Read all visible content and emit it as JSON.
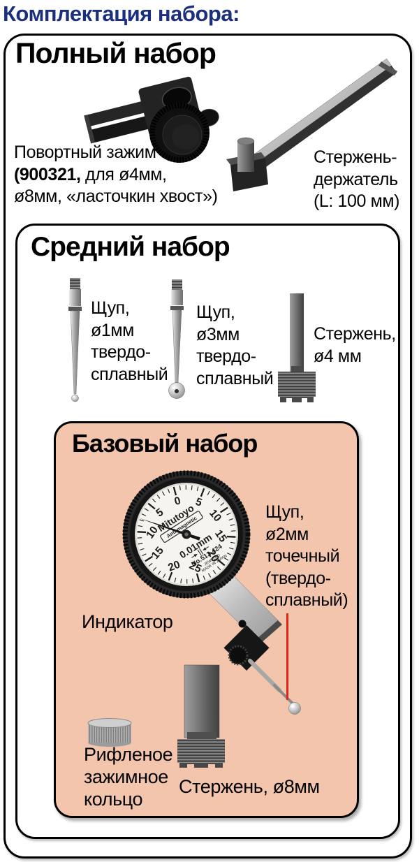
{
  "title": "Комплектация набора:",
  "full_set": {
    "heading": "Полный набор",
    "clamp_label": {
      "line1": "Повортный зажим",
      "line2_bold": "(900321,",
      "line2_rest": " для ø4мм,",
      "line3": "ø8мм, «ласточкин хвост»)"
    },
    "holder_label": {
      "line1": "Стержень-",
      "line2": "держатель",
      "line3": "(L: 100 мм)"
    }
  },
  "medium_set": {
    "heading": "Средний набор",
    "stylus1_label": {
      "line1": "Щуп,",
      "line2": "ø1мм",
      "line3": "твердо-",
      "line4": "сплавный"
    },
    "stylus3_label": {
      "line1": "Щуп,",
      "line2": "ø3мм",
      "line3": "твердо-",
      "line4": "сплавный"
    },
    "stem4_label": {
      "line1": "Стержень,",
      "line2": "ø4 мм"
    }
  },
  "basic_set": {
    "heading": "Базовый набор",
    "indicator_label": "Индикатор",
    "stylus2_label": {
      "line1": "Щуп,",
      "line2": "ø2мм",
      "line3": "точечный",
      "line4": "(твердо-",
      "line5": "сплавный)"
    },
    "ring_label": {
      "line1": "Рифленое",
      "line2": "зажимное",
      "line3": "кольцо"
    },
    "stem8_label": "Стержень, ø8мм",
    "dial": {
      "brand": "Mitutoyo",
      "antimagnetic": "Anti-magnetic",
      "graduation": "0.01mm",
      "model": "No.513-424",
      "submark1": "JEWELED",
      "submark2": "MADE IN JAPAN",
      "numbers": [
        "0",
        "5",
        "10",
        "15",
        "20",
        "25",
        "20",
        "15",
        "10",
        "5"
      ]
    }
  },
  "colors": {
    "title_blue": "#1b2f7e",
    "basic_bg": "#f2c5ac",
    "red_pointer": "#e02318"
  }
}
